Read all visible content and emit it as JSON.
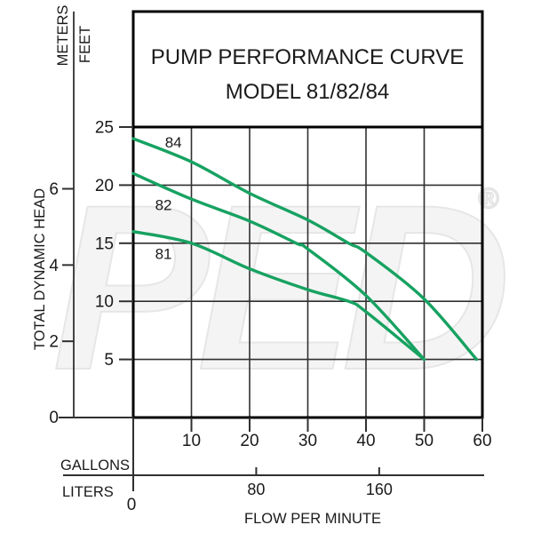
{
  "title": {
    "line1": "PUMP PERFORMANCE CURVE",
    "line2": "MODEL 81/82/84"
  },
  "y_axis": {
    "label": "TOTAL DYNAMIC HEAD",
    "unit_secondary": "METERS",
    "unit_primary": "FEET",
    "origin_label": "0"
  },
  "x_axis": {
    "label": "FLOW PER MINUTE",
    "unit_primary": "GALLONS",
    "unit_secondary": "LITERS"
  },
  "watermark": {
    "text": "PED",
    "symbol": "®"
  },
  "colors": {
    "curve": "#17a261",
    "grid": "#303030",
    "border": "#000000",
    "text": "#1a1a1a"
  },
  "chart_data": {
    "type": "line",
    "title": "PUMP PERFORMANCE CURVE MODEL 81/82/84",
    "xlabel": "FLOW PER MINUTE",
    "ylabel": "TOTAL DYNAMIC HEAD",
    "xlim": [
      0,
      60
    ],
    "ylim": [
      0,
      25
    ],
    "grid": true,
    "legend_position": "inline-curve-labels",
    "x_units": [
      {
        "name": "GALLONS",
        "ticks": [
          10,
          20,
          30,
          40,
          50,
          60
        ]
      },
      {
        "name": "LITERS",
        "ticks": [
          0,
          80,
          160
        ]
      }
    ],
    "y_units": [
      {
        "name": "FEET",
        "ticks": [
          25,
          20,
          15,
          10,
          5
        ]
      },
      {
        "name": "METERS",
        "ticks": [
          6,
          4,
          2
        ]
      }
    ],
    "y_origin": 0,
    "series": [
      {
        "name": "84",
        "x_gpm": [
          0,
          10,
          20,
          30,
          37,
          40,
          50,
          59
        ],
        "y_feet": [
          24,
          22,
          19.3,
          17,
          15,
          14.2,
          10.2,
          5
        ],
        "label_at": [
          6.9,
          23.7
        ]
      },
      {
        "name": "82",
        "x_gpm": [
          0,
          10,
          20,
          28,
          30,
          40,
          50
        ],
        "y_feet": [
          21,
          18.8,
          16.9,
          15,
          14.5,
          10.5,
          5
        ],
        "label_at": [
          5.2,
          18.3
        ]
      },
      {
        "name": "81",
        "x_gpm": [
          0,
          10,
          20,
          30,
          37,
          40,
          50
        ],
        "y_feet": [
          16,
          15,
          12.8,
          11,
          10,
          9.1,
          5
        ],
        "label_at": [
          5.2,
          14.1
        ]
      }
    ]
  }
}
